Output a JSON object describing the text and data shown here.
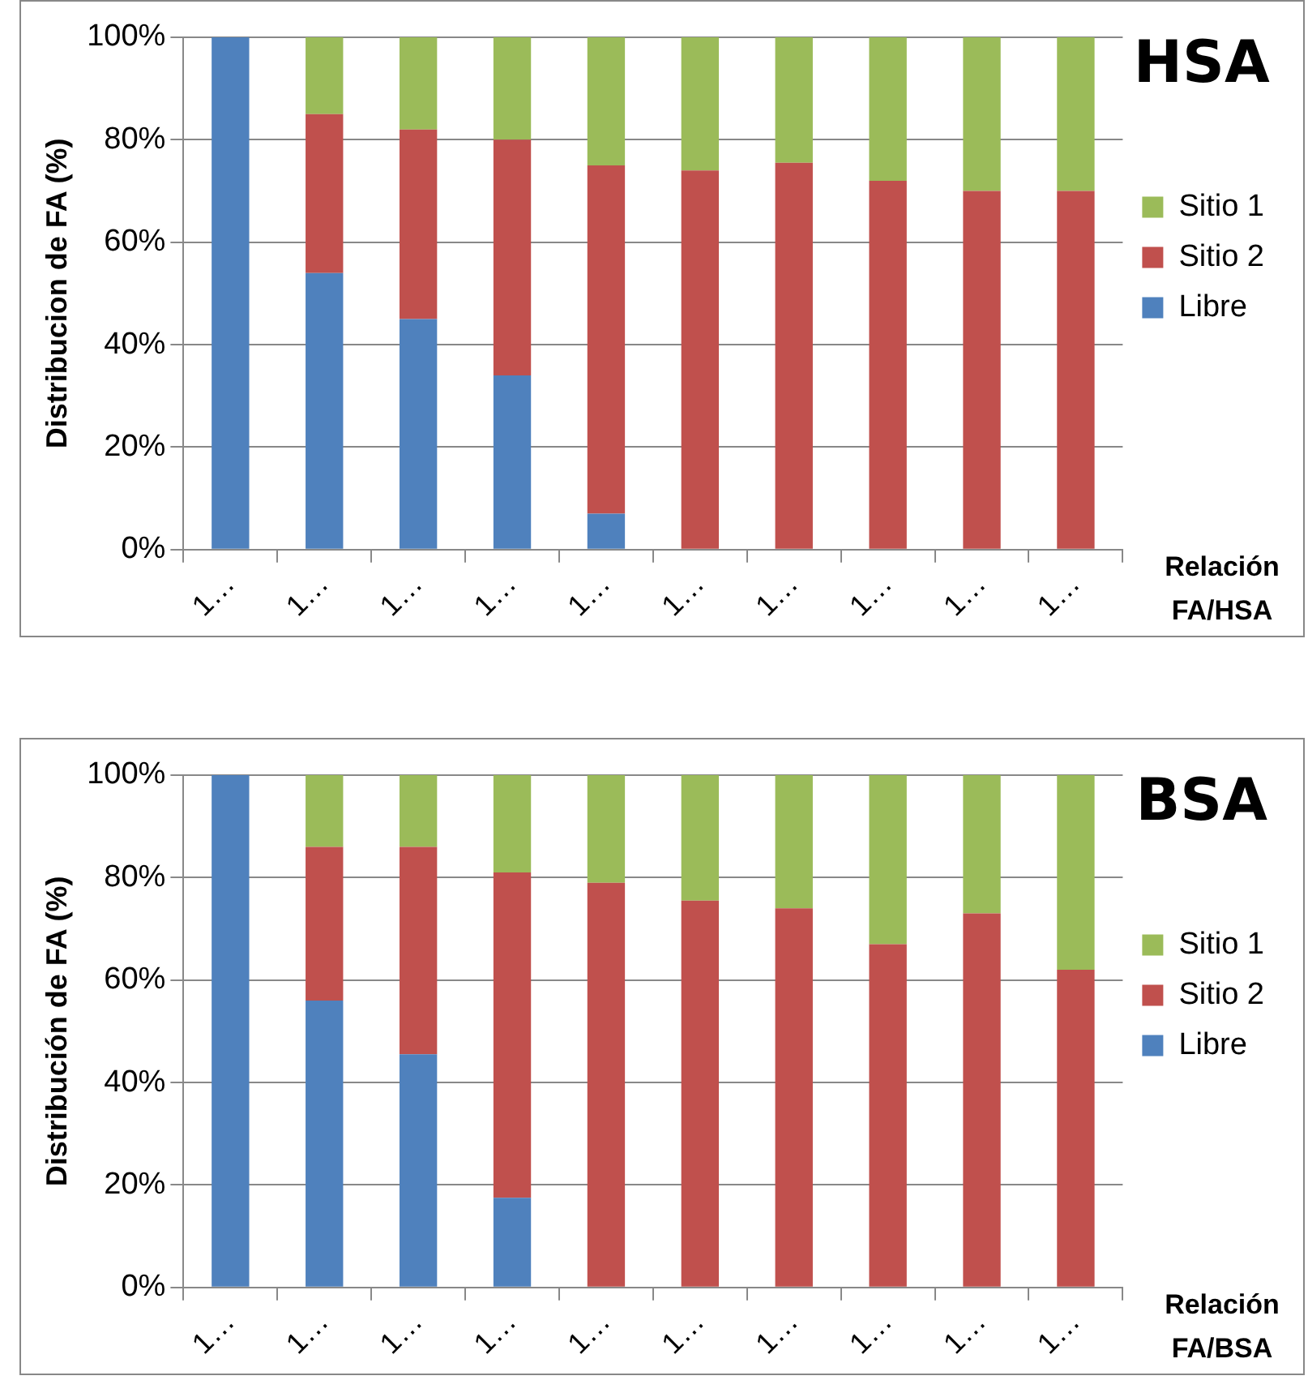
{
  "chart_data": [
    {
      "type": "bar",
      "stacked": true,
      "legend_title": "HSA",
      "xlabel": "Relación FA/HSA",
      "ylabel": "Distribucion de FA (%)",
      "categories": [
        "1…",
        "1…",
        "1…",
        "1…",
        "1…",
        "1…",
        "1…",
        "1…",
        "1…",
        "1…"
      ],
      "series": [
        {
          "name": "Libre",
          "color": "#4f81bd",
          "values": [
            100,
            54,
            45,
            34,
            7,
            0,
            0,
            0,
            0,
            0
          ]
        },
        {
          "name": "Sitio 2",
          "color": "#c0504d",
          "values": [
            0,
            31,
            37,
            46,
            68,
            74,
            75.5,
            72,
            70,
            70
          ]
        },
        {
          "name": "Sitio 1",
          "color": "#9bbb59",
          "values": [
            0,
            15,
            18,
            20,
            25,
            26,
            24.5,
            28,
            30,
            30
          ]
        }
      ],
      "ylim": [
        0,
        100
      ],
      "yticks": [
        {
          "value": 0,
          "label": "0%"
        },
        {
          "value": 20,
          "label": "20%"
        },
        {
          "value": 40,
          "label": "40%"
        },
        {
          "value": 60,
          "label": "60%"
        },
        {
          "value": 80,
          "label": "80%"
        },
        {
          "value": 100,
          "label": "100%"
        }
      ],
      "grid": "y",
      "legend": "right"
    },
    {
      "type": "bar",
      "stacked": true,
      "legend_title": "BSA",
      "xlabel": "Relación FA/BSA",
      "ylabel": "Distribución de FA (%)",
      "categories": [
        "1…",
        "1…",
        "1…",
        "1…",
        "1…",
        "1…",
        "1…",
        "1…",
        "1…",
        "1…"
      ],
      "series": [
        {
          "name": "Libre",
          "color": "#4f81bd",
          "values": [
            100,
            56,
            45.5,
            17.5,
            0,
            0,
            0,
            0,
            0,
            0
          ]
        },
        {
          "name": "Sitio 2",
          "color": "#c0504d",
          "values": [
            0,
            30,
            40.5,
            63.5,
            79,
            75.5,
            74,
            67,
            73,
            62
          ]
        },
        {
          "name": "Sitio 1",
          "color": "#9bbb59",
          "values": [
            0,
            14,
            14,
            19,
            21,
            24.5,
            26,
            33,
            27,
            38
          ]
        }
      ],
      "ylim": [
        0,
        100
      ],
      "yticks": [
        {
          "value": 0,
          "label": "0%"
        },
        {
          "value": 20,
          "label": "20%"
        },
        {
          "value": 40,
          "label": "40%"
        },
        {
          "value": 60,
          "label": "60%"
        },
        {
          "value": 80,
          "label": "80%"
        },
        {
          "value": 100,
          "label": "100%"
        }
      ],
      "grid": "y",
      "legend": "right"
    }
  ]
}
